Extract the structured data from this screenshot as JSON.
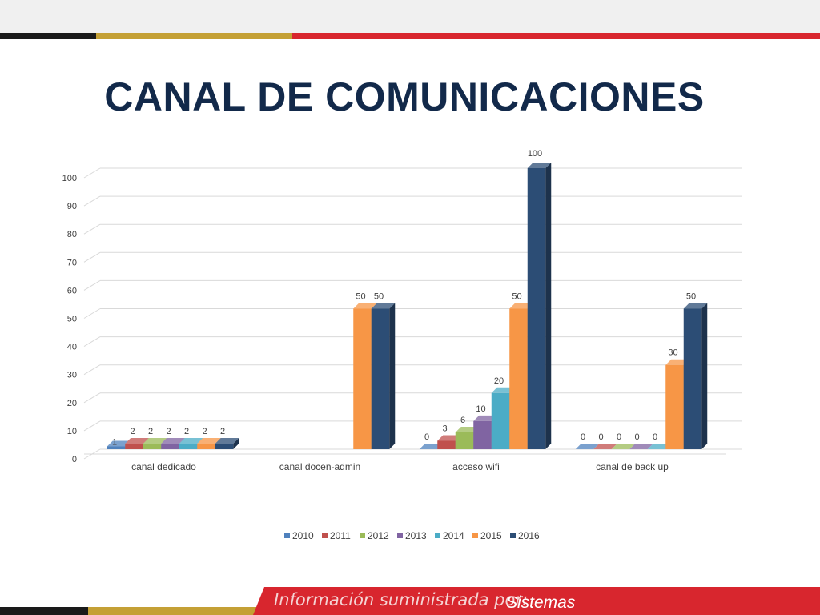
{
  "slide": {
    "title": "CANAL DE COMUNICACIONES"
  },
  "footer": {
    "label": "Información suministrada por:",
    "value": "Sistemas"
  },
  "colors": {
    "title": "#12294a",
    "stripe_black": "#1a1a1a",
    "stripe_gold": "#c4a035",
    "stripe_red": "#d8262e",
    "gridline": "#d9d9d9",
    "axis_text": "#404040"
  },
  "chart_data": {
    "type": "bar",
    "title": "",
    "xlabel": "",
    "ylabel": "",
    "ylim": [
      0,
      100
    ],
    "yticks": [
      0,
      10,
      20,
      30,
      40,
      50,
      60,
      70,
      80,
      90,
      100
    ],
    "grid": true,
    "three_d": true,
    "legend_position": "bottom",
    "categories": [
      "canal dedicado",
      "canal docen-admin",
      "acceso wifi",
      "canal de back up"
    ],
    "series": [
      {
        "name": "2010",
        "color": "#4f81bd",
        "values": [
          1,
          null,
          0,
          0
        ]
      },
      {
        "name": "2011",
        "color": "#c0504d",
        "values": [
          2,
          null,
          3,
          0
        ]
      },
      {
        "name": "2012",
        "color": "#9bbb59",
        "values": [
          2,
          null,
          6,
          0
        ]
      },
      {
        "name": "2013",
        "color": "#8064a2",
        "values": [
          2,
          null,
          10,
          0
        ]
      },
      {
        "name": "2014",
        "color": "#4bacc6",
        "values": [
          2,
          null,
          20,
          0
        ]
      },
      {
        "name": "2015",
        "color": "#f79646",
        "values": [
          2,
          50,
          50,
          30
        ]
      },
      {
        "name": "2016",
        "color": "#2c4d75",
        "values": [
          2,
          50,
          100,
          50
        ]
      }
    ]
  }
}
